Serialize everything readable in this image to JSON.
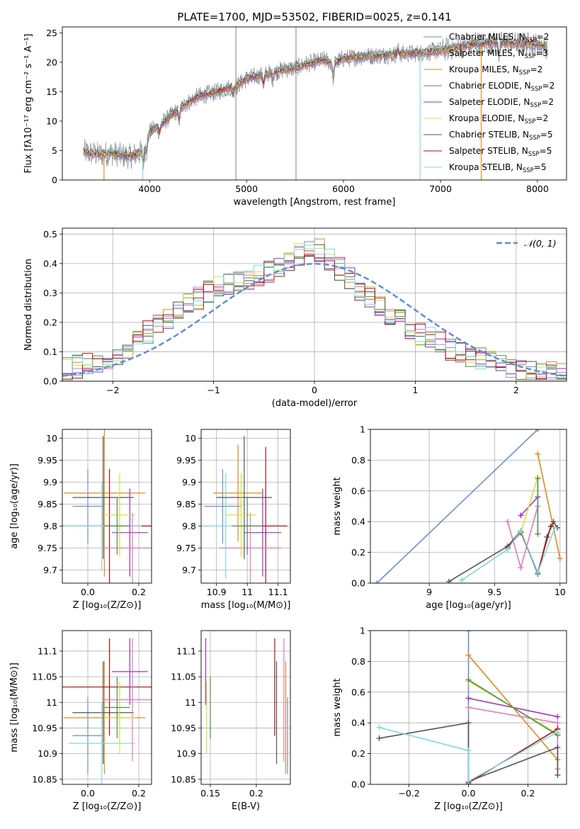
{
  "title": "PLATE=1700, MJD=53502, FIBERID=0025, z=0.141",
  "colors": {
    "Chabrier MILES": "#6a8fd6",
    "Salpeter MILES": "#e07ac0",
    "Kroupa MILES": "#e08a20",
    "Chabrier ELODIE": "#4f8f4f",
    "Salpeter ELODIE": "#9b30c0",
    "Kroupa ELODIE": "#d4e040",
    "Chabrier STELIB": "#555555",
    "Salpeter STELIB": "#b01010",
    "Kroupa STELIB": "#80d8e0",
    "data": "#808080",
    "gauss": "#5b8bd8"
  },
  "chart_data": [
    {
      "id": "spectrum",
      "type": "line",
      "xlabel": "wavelength [Angstrom, rest frame]",
      "ylabel": "Flux [fλ10⁻¹⁷ erg cm⁻² s⁻¹ A⁻¹]",
      "xlim": [
        3100,
        8300
      ],
      "ylim": [
        0,
        26
      ],
      "xticks": [
        4000,
        5000,
        6000,
        7000,
        8000
      ],
      "yticks": [
        0,
        5,
        10,
        15,
        20,
        25
      ],
      "legend_position": "top-right",
      "legend": [
        {
          "name": "Chabrier MILES",
          "label": "Chabrier MILES, N",
          "sub": "SSP",
          "tail": "=2"
        },
        {
          "name": "Salpeter MILES",
          "label": "Salpeter MILES, N",
          "sub": "SSP",
          "tail": "=3"
        },
        {
          "name": "Kroupa MILES",
          "label": "Kroupa MILES, N",
          "sub": "SSP",
          "tail": "=2"
        },
        {
          "name": "Chabrier ELODIE",
          "label": "Chabrier ELODIE, N",
          "sub": "SSP",
          "tail": "=2"
        },
        {
          "name": "Salpeter ELODIE",
          "label": "Salpeter ELODIE, N",
          "sub": "SSP",
          "tail": "=2"
        },
        {
          "name": "Kroupa ELODIE",
          "label": "Kroupa ELODIE, N",
          "sub": "SSP",
          "tail": "=2"
        },
        {
          "name": "Chabrier STELIB",
          "label": "Chabrier STELIB, N",
          "sub": "SSP",
          "tail": "=5"
        },
        {
          "name": "Salpeter STELIB",
          "label": "Salpeter STELIB, N",
          "sub": "SSP",
          "tail": "=5"
        },
        {
          "name": "Kroupa STELIB",
          "label": "Kroupa STELIB, N",
          "sub": "SSP",
          "tail": "=5"
        }
      ],
      "continuum_points": [
        [
          3320,
          4.8
        ],
        [
          3400,
          4.5
        ],
        [
          3500,
          4.3
        ],
        [
          3600,
          4.6
        ],
        [
          3700,
          4.2
        ],
        [
          3800,
          4.0
        ],
        [
          3900,
          4.6
        ],
        [
          3950,
          5.6
        ],
        [
          4000,
          8.2
        ],
        [
          4100,
          9.2
        ],
        [
          4200,
          10.6
        ],
        [
          4300,
          12.0
        ],
        [
          4400,
          13.2
        ],
        [
          4500,
          14.2
        ],
        [
          4600,
          14.6
        ],
        [
          4700,
          15.0
        ],
        [
          4800,
          15.6
        ],
        [
          4900,
          16.0
        ],
        [
          5000,
          17.2
        ],
        [
          5100,
          17.6
        ],
        [
          5200,
          18.0
        ],
        [
          5300,
          18.4
        ],
        [
          5400,
          18.8
        ],
        [
          5500,
          19.0
        ],
        [
          5600,
          19.6
        ],
        [
          5700,
          20.0
        ],
        [
          5800,
          20.4
        ],
        [
          5890,
          19.8
        ],
        [
          6000,
          20.6
        ],
        [
          6200,
          21.0
        ],
        [
          6400,
          21.2
        ],
        [
          6600,
          21.4
        ],
        [
          6800,
          21.6
        ],
        [
          7000,
          22.0
        ],
        [
          7200,
          22.6
        ],
        [
          7400,
          23.2
        ],
        [
          7600,
          23.4
        ],
        [
          7800,
          23.2
        ],
        [
          8000,
          23.0
        ],
        [
          8100,
          22.6
        ]
      ],
      "absorption_features": [
        [
          3934,
          -2.0
        ],
        [
          3969,
          -1.6
        ],
        [
          4102,
          -1.2
        ],
        [
          4304,
          -1.8
        ],
        [
          4861,
          -1.0
        ],
        [
          5175,
          -1.6
        ],
        [
          5270,
          -1.0
        ],
        [
          5894,
          -2.4
        ],
        [
          6563,
          0.6
        ],
        [
          7605,
          -2.2
        ]
      ],
      "noise_amplitude": 1.6,
      "spike_lines": [
        4890,
        5510
      ],
      "model_dropouts": {
        "Kroupa MILES": [
          3530,
          7420
        ],
        "Kroupa STELIB": [
          3930,
          6790
        ]
      }
    },
    {
      "id": "residuals",
      "type": "histogram",
      "xlabel": "(data-model)/error",
      "ylabel": "Normed distribution",
      "xlim": [
        -2.5,
        2.5
      ],
      "ylim": [
        0,
        0.52
      ],
      "xticks": [
        -2,
        -1,
        0,
        1,
        2
      ],
      "yticks": [
        0.0,
        0.1,
        0.2,
        0.3,
        0.4,
        0.5
      ],
      "bin_width": 0.1,
      "reference_curve": {
        "name": "N(0,1)",
        "label": "𝒩(0, 1)",
        "mean": 0,
        "sigma": 1
      },
      "envelope": [
        [
          -2.5,
          0.04
        ],
        [
          -2.0,
          0.07
        ],
        [
          -1.6,
          0.18
        ],
        [
          -1.2,
          0.27
        ],
        [
          -1.0,
          0.32
        ],
        [
          -0.6,
          0.35
        ],
        [
          -0.3,
          0.39
        ],
        [
          -0.1,
          0.44
        ],
        [
          0.0,
          0.46
        ],
        [
          0.2,
          0.4
        ],
        [
          0.4,
          0.33
        ],
        [
          0.6,
          0.27
        ],
        [
          0.8,
          0.22
        ],
        [
          1.0,
          0.17
        ],
        [
          1.2,
          0.14
        ],
        [
          1.4,
          0.1
        ],
        [
          1.6,
          0.08
        ],
        [
          1.8,
          0.06
        ],
        [
          2.0,
          0.04
        ],
        [
          2.5,
          0.02
        ]
      ]
    },
    {
      "id": "age-vs-Z",
      "type": "errorbar",
      "xlabel": "Z [log₁₀(Z/Z⊙)]",
      "ylabel": "age  [log₁₀(age/yr)]",
      "xlim": [
        -0.1,
        0.25
      ],
      "ylim": [
        9.67,
        10.02
      ],
      "xticks": [
        0.0,
        0.2
      ],
      "yticks": [
        9.7,
        9.75,
        9.8,
        9.85,
        9.9,
        9.95,
        10.0
      ],
      "points": [
        {
          "name": "Chabrier MILES",
          "x": 0.0,
          "y": 9.845,
          "xerr": 0.06,
          "yerr": 0.085
        },
        {
          "name": "Kroupa MILES",
          "x": 0.065,
          "y": 9.875,
          "xerr": 0.16,
          "yerr": 0.19
        },
        {
          "name": "Chabrier STELIB",
          "x": 0.06,
          "y": 9.865,
          "xerr": 0.12,
          "yerr": 0.14
        },
        {
          "name": "Salpeter STELIB",
          "x": 0.085,
          "y": 9.8,
          "xerr": 0.185,
          "yerr": 0.13
        },
        {
          "name": "Kroupa STELIB",
          "x": 0.055,
          "y": 9.8,
          "xerr": 0.155,
          "yerr": 0.1
        },
        {
          "name": "Salpeter ELODIE",
          "x": 0.165,
          "y": 9.785,
          "xerr": 0.07,
          "yerr": 0.1
        },
        {
          "name": "Salpeter MILES",
          "x": 0.175,
          "y": 9.75,
          "xerr": 0.12,
          "yerr": 0.08
        },
        {
          "name": "Kroupa ELODIE",
          "x": 0.125,
          "y": 9.825,
          "xerr": 0.06,
          "yerr": 0.095
        },
        {
          "name": "Chabrier ELODIE",
          "x": 0.115,
          "y": 9.8,
          "xerr": 0.05,
          "yerr": 0.065
        }
      ]
    },
    {
      "id": "age-vs-mass",
      "type": "errorbar",
      "xlabel": "mass [log₁₀(M/M⊙)]",
      "ylabel": "",
      "xlim": [
        10.85,
        11.14
      ],
      "ylim": [
        9.67,
        10.02
      ],
      "xticks": [
        10.9,
        11.0,
        11.1
      ],
      "yticks": [
        9.7,
        9.75,
        9.8,
        9.85,
        9.9,
        9.95,
        10.0
      ],
      "points": [
        {
          "name": "Chabrier MILES",
          "x": 10.92,
          "y": 9.845,
          "xerr": 0.06,
          "yerr": 0.085
        },
        {
          "name": "Kroupa MILES",
          "x": 10.97,
          "y": 9.875,
          "xerr": 0.08,
          "yerr": 0.11
        },
        {
          "name": "Kroupa STELIB",
          "x": 10.93,
          "y": 9.8,
          "xerr": 0.1,
          "yerr": 0.12
        },
        {
          "name": "Chabrier STELIB",
          "x": 10.99,
          "y": 9.865,
          "xerr": 0.09,
          "yerr": 0.14
        },
        {
          "name": "Salpeter STELIB",
          "x": 11.06,
          "y": 9.8,
          "xerr": 0.07,
          "yerr": 0.18
        },
        {
          "name": "Salpeter ELODIE",
          "x": 11.05,
          "y": 9.785,
          "xerr": 0.06,
          "yerr": 0.1
        },
        {
          "name": "Salpeter MILES",
          "x": 11.01,
          "y": 9.75,
          "xerr": 0.1,
          "yerr": 0.08
        },
        {
          "name": "Kroupa ELODIE",
          "x": 10.98,
          "y": 9.825,
          "xerr": 0.05,
          "yerr": 0.095
        },
        {
          "name": "Chabrier ELODIE",
          "x": 11.0,
          "y": 9.8,
          "xerr": 0.05,
          "yerr": 0.065
        }
      ]
    },
    {
      "id": "weight-vs-age",
      "type": "line",
      "xlabel": "age  [log₁₀(age/yr)]",
      "ylabel": "mass weight",
      "xlim": [
        8.55,
        10.05
      ],
      "ylim": [
        0,
        1.0
      ],
      "xticks": [
        9.0,
        9.5,
        10.0
      ],
      "yticks": [
        0.0,
        0.2,
        0.4,
        0.6,
        0.8,
        1.0
      ],
      "series": [
        {
          "name": "Chabrier MILES",
          "points": [
            [
              8.6,
              0.0
            ],
            [
              9.83,
              1.0
            ]
          ]
        },
        {
          "name": "Kroupa MILES",
          "points": [
            [
              9.83,
              0.84
            ],
            [
              10.0,
              0.16
            ]
          ]
        },
        {
          "name": "Salpeter MILES",
          "points": [
            [
              9.6,
              0.4
            ],
            [
              9.7,
              0.1
            ],
            [
              9.83,
              0.5
            ]
          ]
        },
        {
          "name": "Salpeter ELODIE",
          "points": [
            [
              9.7,
              0.44
            ],
            [
              9.83,
              0.56
            ]
          ]
        },
        {
          "name": "Kroupa ELODIE",
          "points": [
            [
              9.7,
              0.33
            ],
            [
              9.83,
              0.69
            ]
          ]
        },
        {
          "name": "Chabrier ELODIE",
          "points": [
            [
              9.83,
              0.68
            ],
            [
              9.83,
              0.32
            ]
          ]
        },
        {
          "name": "Chabrier STELIB",
          "points": [
            [
              9.15,
              0.01
            ],
            [
              9.6,
              0.24
            ],
            [
              9.7,
              0.34
            ],
            [
              9.83,
              0.06
            ],
            [
              9.9,
              0.3
            ],
            [
              9.95,
              0.4
            ],
            [
              9.98,
              0.36
            ]
          ]
        },
        {
          "name": "Salpeter STELIB",
          "points": [
            [
              9.6,
              0.23
            ],
            [
              9.7,
              0.33
            ],
            [
              9.83,
              0.07
            ],
            [
              9.93,
              0.37
            ]
          ]
        },
        {
          "name": "Kroupa STELIB",
          "points": [
            [
              9.25,
              0.02
            ],
            [
              9.6,
              0.22
            ],
            [
              9.7,
              0.34
            ],
            [
              9.83,
              0.07
            ],
            [
              9.96,
              0.36
            ]
          ]
        }
      ]
    },
    {
      "id": "mass-vs-Z",
      "type": "errorbar",
      "xlabel": "Z [log₁₀(Z/Z⊙)]",
      "ylabel": "mass [log₁₀(M/M⊙)]",
      "xlim": [
        -0.1,
        0.25
      ],
      "ylim": [
        10.84,
        11.14
      ],
      "xticks": [
        0.0,
        0.2
      ],
      "yticks": [
        10.85,
        10.9,
        10.95,
        11.0,
        11.05,
        11.1
      ],
      "points": [
        {
          "name": "Chabrier MILES",
          "x": 0.0,
          "y": 10.935,
          "xerr": 0.06,
          "yerr": 0.075
        },
        {
          "name": "Kroupa MILES",
          "x": 0.065,
          "y": 10.97,
          "xerr": 0.16,
          "yerr": 0.11
        },
        {
          "name": "Chabrier STELIB",
          "x": 0.06,
          "y": 10.98,
          "xerr": 0.12,
          "yerr": 0.1
        },
        {
          "name": "Salpeter STELIB",
          "x": 0.085,
          "y": 11.03,
          "xerr": 0.185,
          "yerr": 0.095
        },
        {
          "name": "Kroupa STELIB",
          "x": 0.055,
          "y": 10.92,
          "xerr": 0.13,
          "yerr": 0.08
        },
        {
          "name": "Salpeter ELODIE",
          "x": 0.165,
          "y": 11.06,
          "xerr": 0.07,
          "yerr": 0.065
        },
        {
          "name": "Salpeter MILES",
          "x": 0.175,
          "y": 11.005,
          "xerr": 0.12,
          "yerr": 0.12
        },
        {
          "name": "Kroupa ELODIE",
          "x": 0.125,
          "y": 10.97,
          "xerr": 0.06,
          "yerr": 0.07
        },
        {
          "name": "Chabrier ELODIE",
          "x": 0.115,
          "y": 10.99,
          "xerr": 0.05,
          "yerr": 0.06
        }
      ]
    },
    {
      "id": "mass-vs-ebv",
      "type": "errorbar",
      "xlabel": "E(B-V)",
      "ylabel": "",
      "xlim": [
        0.14,
        0.237
      ],
      "ylim": [
        10.84,
        11.14
      ],
      "xticks": [
        0.15,
        0.2
      ],
      "yticks": [
        10.85,
        10.9,
        10.95,
        11.0,
        11.05,
        11.1
      ],
      "points": [
        {
          "name": "Salpeter ELODIE",
          "x": 0.145,
          "y": 11.06,
          "yerr": 0.065
        },
        {
          "name": "Kroupa ELODIE",
          "x": 0.146,
          "y": 10.97,
          "yerr": 0.07
        },
        {
          "name": "Chabrier ELODIE",
          "x": 0.15,
          "y": 10.99,
          "yerr": 0.06
        },
        {
          "name": "Salpeter STELIB",
          "x": 0.22,
          "y": 11.03,
          "yerr": 0.095
        },
        {
          "name": "Chabrier STELIB",
          "x": 0.222,
          "y": 10.98,
          "yerr": 0.1
        },
        {
          "name": "Salpeter MILES",
          "x": 0.23,
          "y": 11.005,
          "yerr": 0.12
        },
        {
          "name": "Kroupa MILES",
          "x": 0.232,
          "y": 10.97,
          "yerr": 0.11
        },
        {
          "name": "Chabrier MILES",
          "x": 0.234,
          "y": 10.935,
          "yerr": 0.075
        }
      ]
    },
    {
      "id": "weight-vs-Z",
      "type": "line",
      "xlabel": "Z [log₁₀(Z/Z⊙)]",
      "ylabel": "mass weight",
      "xlim": [
        -0.33,
        0.33
      ],
      "ylim": [
        0,
        1.0
      ],
      "xticks": [
        -0.2,
        0.0,
        0.2
      ],
      "yticks": [
        0.0,
        0.2,
        0.4,
        0.6,
        0.8,
        1.0
      ],
      "series": [
        {
          "name": "Chabrier MILES",
          "points": [
            [
              0.0,
              0.0
            ],
            [
              0.0,
              1.0
            ]
          ]
        },
        {
          "name": "Kroupa MILES",
          "points": [
            [
              0.0,
              0.84
            ],
            [
              0.3,
              0.16
            ]
          ]
        },
        {
          "name": "Salpeter MILES",
          "points": [
            [
              0.0,
              0.5
            ],
            [
              0.3,
              0.4
            ],
            [
              0.3,
              0.1
            ]
          ]
        },
        {
          "name": "Salpeter ELODIE",
          "points": [
            [
              0.0,
              0.56
            ],
            [
              0.3,
              0.44
            ]
          ]
        },
        {
          "name": "Kroupa ELODIE",
          "points": [
            [
              0.0,
              0.67
            ],
            [
              0.3,
              0.33
            ]
          ]
        },
        {
          "name": "Chabrier ELODIE",
          "points": [
            [
              0.0,
              0.68
            ],
            [
              0.3,
              0.32
            ]
          ]
        },
        {
          "name": "Chabrier STELIB",
          "points": [
            [
              -0.3,
              0.3
            ],
            [
              0.0,
              0.4
            ],
            [
              0.0,
              0.02
            ],
            [
              0.3,
              0.24
            ],
            [
              0.3,
              0.06
            ]
          ]
        },
        {
          "name": "Salpeter STELIB",
          "points": [
            [
              0.0,
              0.01
            ],
            [
              0.3,
              0.36
            ]
          ]
        },
        {
          "name": "Kroupa STELIB",
          "points": [
            [
              -0.3,
              0.37
            ],
            [
              0.0,
              0.22
            ],
            [
              0.0,
              0.02
            ],
            [
              0.3,
              0.34
            ]
          ]
        }
      ]
    }
  ]
}
